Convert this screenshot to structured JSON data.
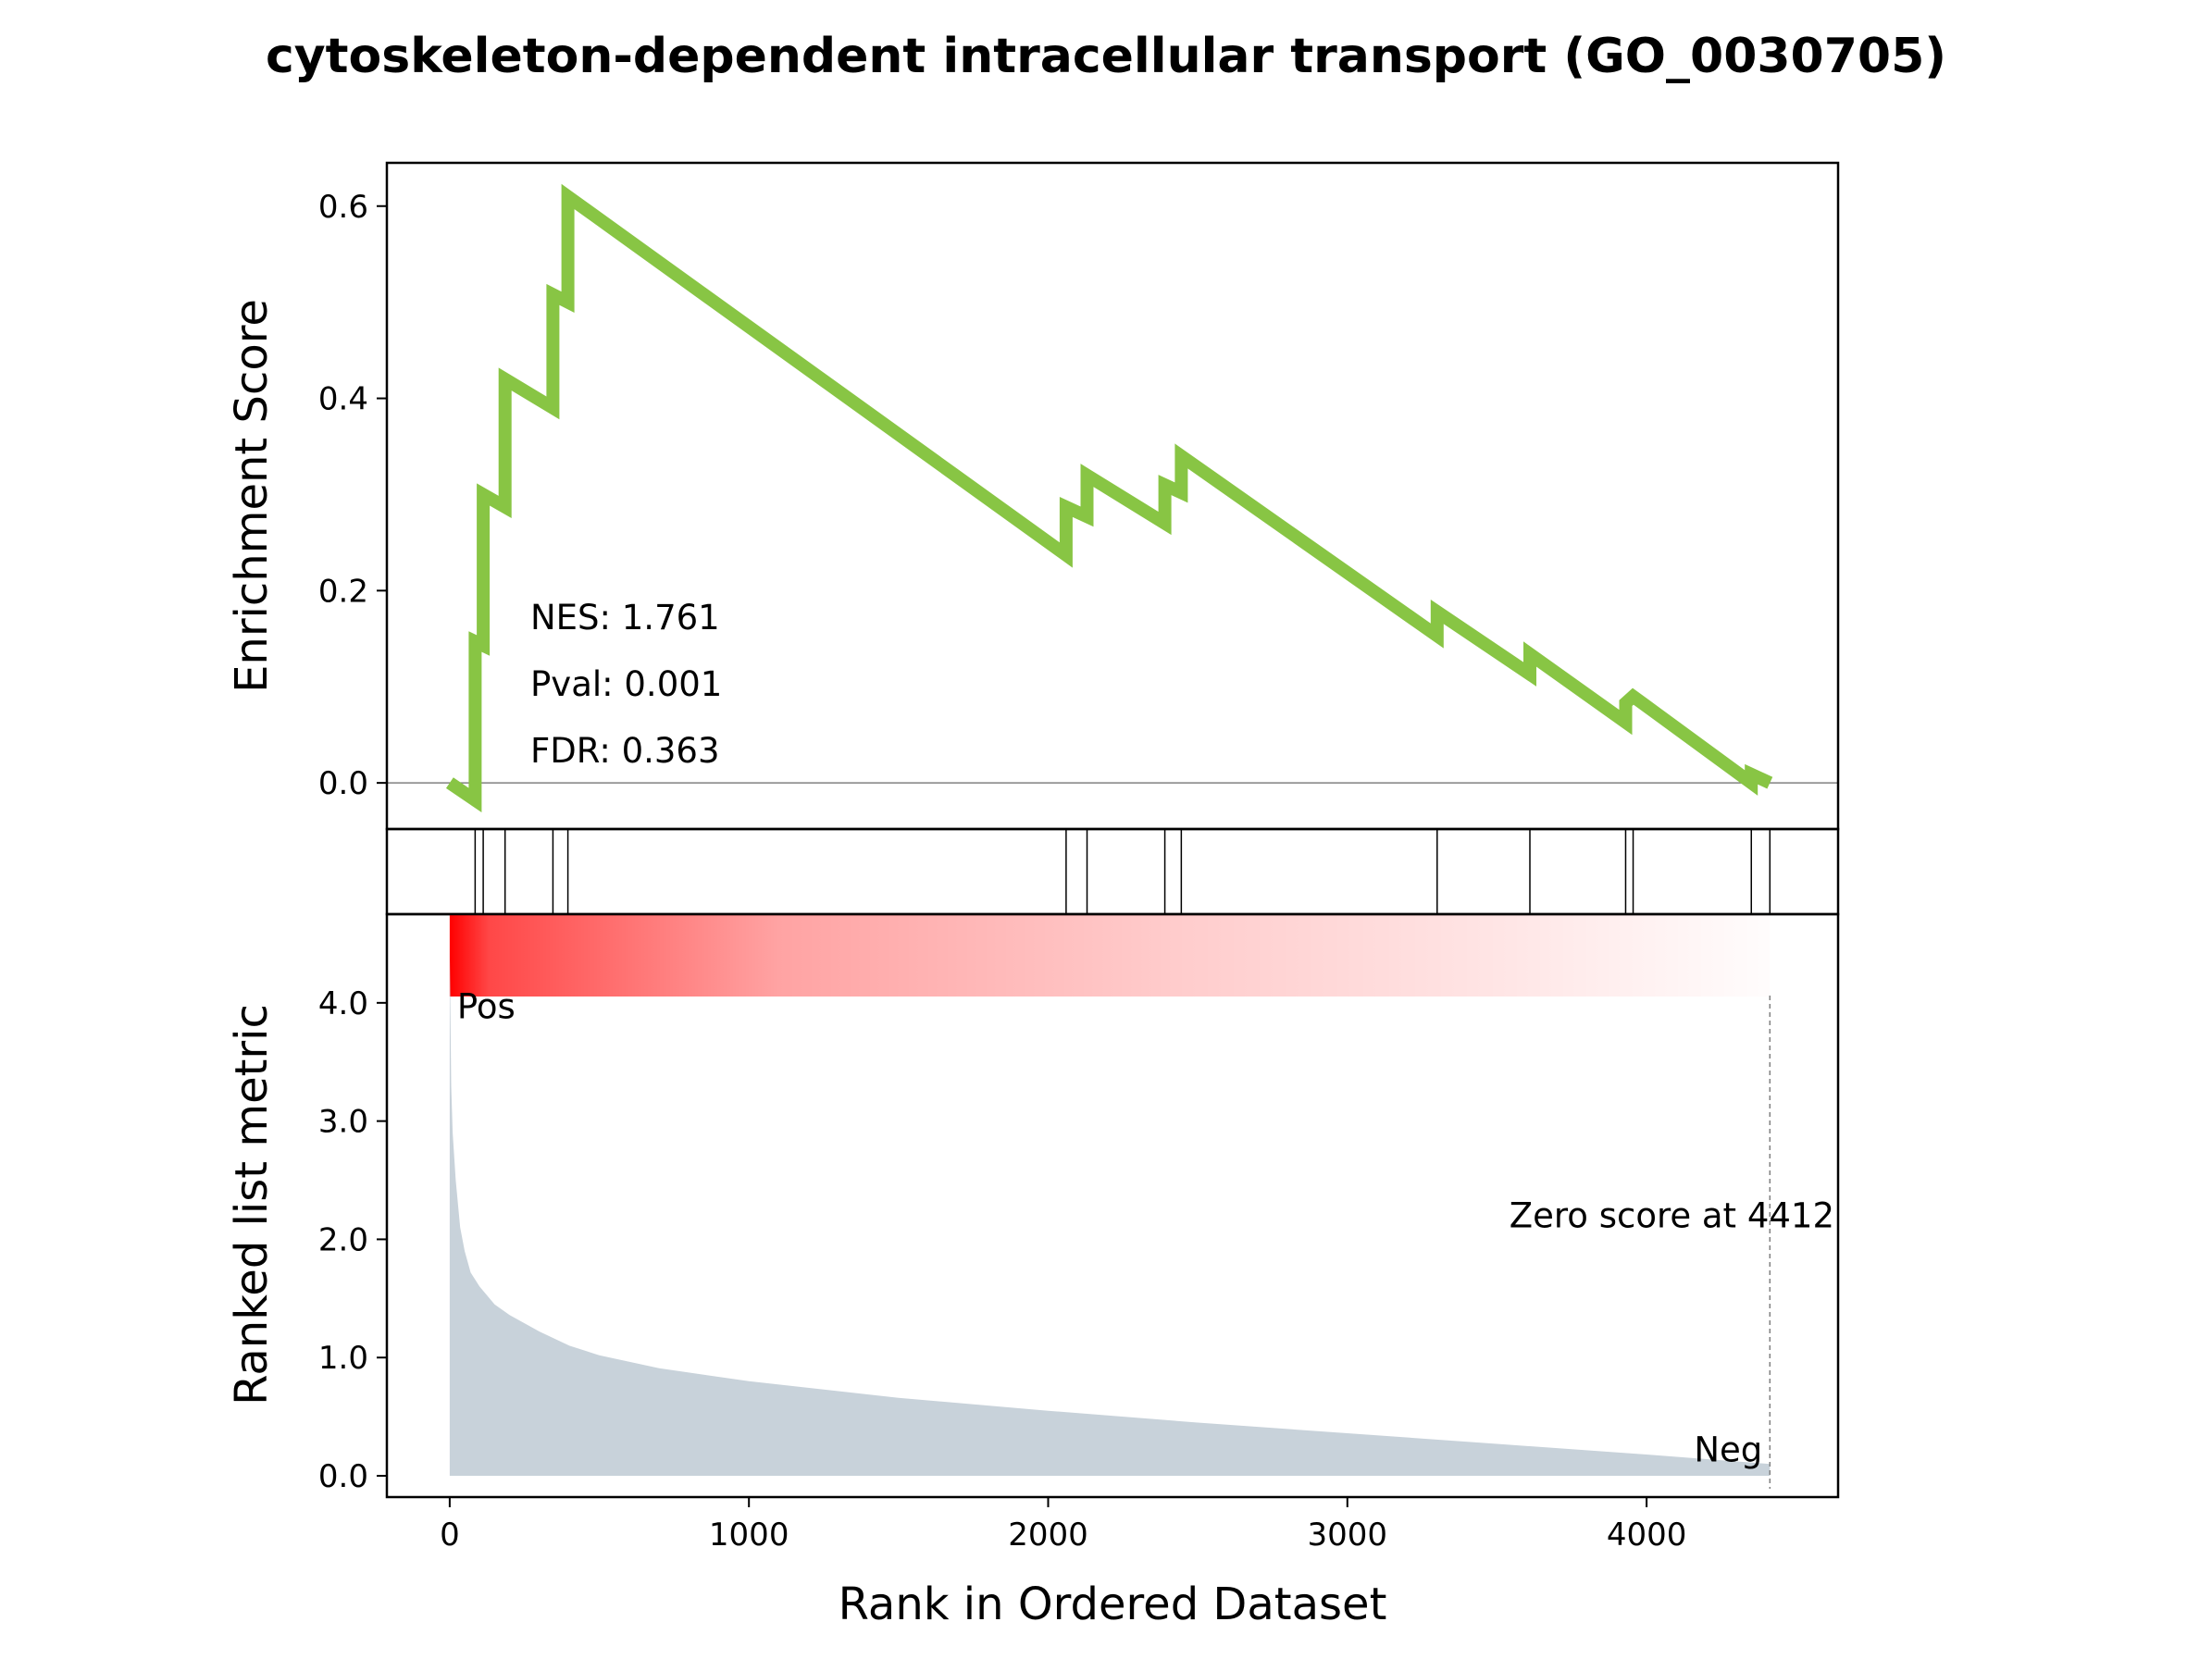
{
  "chart_data": {
    "type": "line",
    "title": "cytoskeleton-dependent intracellular transport (GO_0030705)",
    "xlabel": "Rank in Ordered Dataset",
    "xlim": [
      -210,
      4640
    ],
    "x_ticks": [
      0,
      1000,
      2000,
      3000,
      4000
    ],
    "x_tick_labels": [
      "0",
      "1000",
      "2000",
      "3000",
      "4000"
    ],
    "es_panel": {
      "ylabel": "Enrichment Score",
      "ylim": [
        -0.048,
        0.645
      ],
      "y_ticks": [
        0.0,
        0.2,
        0.4,
        0.6
      ],
      "y_tick_labels": [
        "0.0",
        "0.2",
        "0.4",
        "0.6"
      ],
      "zero_line": true,
      "line_color": "#88c544",
      "series": [
        {
          "x": [
            0,
            85,
            85,
            112,
            112,
            185,
            185,
            345,
            345,
            395,
            395,
            2060,
            2060,
            2130,
            2130,
            2390,
            2390,
            2445,
            2445,
            3300,
            3300,
            3610,
            3610,
            3930,
            3930,
            3955,
            3955,
            4350,
            4350,
            4412
          ],
          "y": [
            0.0,
            -0.018,
            0.147,
            0.143,
            0.3,
            0.287,
            0.42,
            0.39,
            0.508,
            0.5,
            0.61,
            0.237,
            0.287,
            0.277,
            0.32,
            0.27,
            0.31,
            0.302,
            0.34,
            0.153,
            0.178,
            0.113,
            0.134,
            0.063,
            0.083,
            0.09,
            0.09,
            0.0,
            0.009,
            0.0
          ]
        }
      ],
      "annotations": [
        "NES: 1.761",
        "Pval: 0.001",
        "FDR: 0.363"
      ]
    },
    "hits_panel": {
      "hit_positions": [
        85,
        112,
        185,
        345,
        395,
        2060,
        2130,
        2390,
        2445,
        3300,
        3610,
        3930,
        3955,
        4350,
        4412
      ]
    },
    "rank_panel": {
      "ylabel": "Ranked list metric",
      "ylim": [
        -0.18,
        4.75
      ],
      "y_ticks": [
        0.0,
        1.0,
        2.0,
        3.0,
        4.0
      ],
      "y_tick_labels": [
        "0.0",
        "1.0",
        "2.0",
        "3.0",
        "4.0"
      ],
      "heatmap_color": "#ff0000",
      "fill_color": "#c8d2da",
      "zero_score_rank": 4412,
      "zero_score_label": "Zero score at 4412",
      "pos_label": "Pos",
      "pos_color": "#ff0000",
      "neg_label": "Neg",
      "neg_color": "#0000ff",
      "metric": {
        "x": [
          0,
          5,
          10,
          20,
          35,
          50,
          70,
          100,
          150,
          200,
          300,
          400,
          500,
          700,
          1000,
          1500,
          2000,
          2500,
          3000,
          3500,
          4000,
          4412
        ],
        "y": [
          4.48,
          3.3,
          2.9,
          2.5,
          2.1,
          1.9,
          1.72,
          1.6,
          1.45,
          1.36,
          1.22,
          1.1,
          1.02,
          0.91,
          0.8,
          0.66,
          0.55,
          0.45,
          0.36,
          0.27,
          0.18,
          0.1
        ]
      }
    }
  }
}
